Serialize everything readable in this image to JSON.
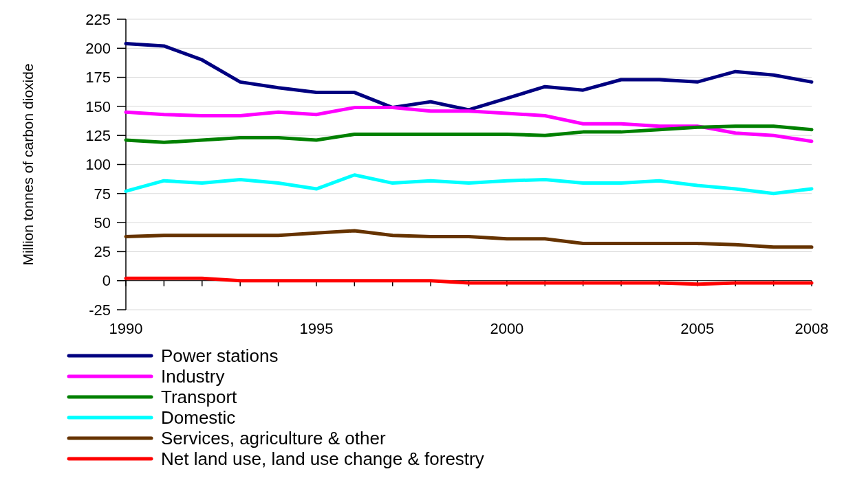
{
  "chart_data": {
    "type": "line",
    "ylabel": "Million tonnes of carbon dioxide",
    "x": [
      1990,
      1991,
      1992,
      1993,
      1994,
      1995,
      1996,
      1997,
      1998,
      1999,
      2000,
      2001,
      2002,
      2003,
      2004,
      2005,
      2006,
      2007,
      2008
    ],
    "xlim": [
      1990,
      2008
    ],
    "xticks": [
      1990,
      {
        "value": 1991,
        "label": null
      },
      {
        "value": 1992,
        "label": null
      },
      {
        "value": 1993,
        "label": null
      },
      {
        "value": 1994,
        "label": null
      },
      1995,
      {
        "value": 1996,
        "label": null
      },
      {
        "value": 1997,
        "label": null
      },
      {
        "value": 1998,
        "label": null
      },
      {
        "value": 1999,
        "label": null
      },
      2000,
      {
        "value": 2001,
        "label": null
      },
      {
        "value": 2002,
        "label": null
      },
      {
        "value": 2003,
        "label": null
      },
      {
        "value": 2004,
        "label": null
      },
      2005,
      {
        "value": 2006,
        "label": null
      },
      {
        "value": 2007,
        "label": null
      },
      2008
    ],
    "ylim": [
      -25,
      225
    ],
    "yticks": [
      -25,
      0,
      25,
      50,
      75,
      100,
      125,
      150,
      175,
      200,
      225
    ],
    "grid": "y",
    "legend": "bottom",
    "marker": "none",
    "line_style": "solid",
    "series": [
      {
        "name": "Power stations",
        "color": "#000080",
        "values": [
          204,
          202,
          190,
          171,
          166,
          162,
          162,
          149,
          154,
          147,
          157,
          167,
          164,
          173,
          173,
          171,
          180,
          177,
          171
        ]
      },
      {
        "name": "Industry",
        "color": "#ff00ff",
        "values": [
          145,
          143,
          142,
          142,
          145,
          143,
          149,
          149,
          146,
          146,
          144,
          142,
          135,
          135,
          133,
          133,
          127,
          125,
          120
        ]
      },
      {
        "name": "Transport",
        "color": "#008000",
        "values": [
          121,
          119,
          121,
          123,
          123,
          121,
          126,
          126,
          126,
          126,
          126,
          125,
          128,
          128,
          130,
          132,
          133,
          133,
          130
        ]
      },
      {
        "name": "Domestic",
        "color": "#00ffff",
        "values": [
          77,
          86,
          84,
          87,
          84,
          79,
          91,
          84,
          86,
          84,
          86,
          87,
          84,
          84,
          86,
          82,
          79,
          75,
          79
        ]
      },
      {
        "name": "Services, agriculture & other",
        "color": "#663300",
        "values": [
          38,
          39,
          39,
          39,
          39,
          41,
          43,
          39,
          38,
          38,
          36,
          36,
          32,
          32,
          32,
          32,
          31,
          29,
          29
        ]
      },
      {
        "name": "Net land use, land use change & forestry",
        "color": "#ff0000",
        "values": [
          2,
          2,
          2,
          0,
          0,
          0,
          0,
          0,
          0,
          -2,
          -2,
          -2,
          -2,
          -2,
          -2,
          -3,
          -2,
          -2,
          -2
        ]
      }
    ]
  }
}
